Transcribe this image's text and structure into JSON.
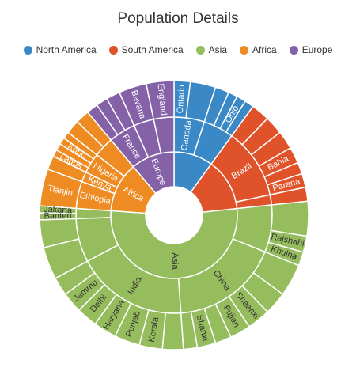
{
  "chart_data": {
    "type": "sunburst",
    "title": "Population Details",
    "legend_position": "top",
    "legend": [
      {
        "name": "North America",
        "color": "#3A88C5"
      },
      {
        "name": "South America",
        "color": "#E0532A"
      },
      {
        "name": "Asia",
        "color": "#95BC5D"
      },
      {
        "name": "Africa",
        "color": "#EE8B22"
      },
      {
        "name": "Europe",
        "color": "#8562A7"
      }
    ],
    "continents": [
      {
        "name": "North America",
        "label": "",
        "value": 36,
        "color": "#3A88C5",
        "countries": [
          {
            "name": "Canada",
            "label": "Canada",
            "value": 18,
            "regions": [
              {
                "label": "Ontario",
                "value": 7
              },
              {
                "label": "",
                "value": 11
              }
            ]
          },
          {
            "name": "",
            "label": "",
            "value": 18,
            "regions": [
              {
                "label": "",
                "value": 6
              },
              {
                "label": "",
                "value": 4
              },
              {
                "label": "Ohio",
                "value": 4
              },
              {
                "label": "",
                "value": 4
              }
            ]
          }
        ]
      },
      {
        "name": "South America",
        "label": "",
        "value": 48,
        "color": "#E0532A",
        "countries": [
          {
            "name": "Brazil",
            "label": "Brazil",
            "value": 42,
            "regions": [
              {
                "label": "",
                "value": 8
              },
              {
                "label": "",
                "value": 8
              },
              {
                "label": "",
                "value": 8
              },
              {
                "label": "Bahia",
                "value": 7
              },
              {
                "label": "",
                "value": 5
              },
              {
                "label": "Parana",
                "value": 6
              }
            ]
          },
          {
            "name": "",
            "label": "",
            "value": 6,
            "regions": [
              {
                "label": "",
                "value": 6
              }
            ]
          }
        ]
      },
      {
        "name": "Asia",
        "label": "Asia",
        "value": 190,
        "color": "#95BC5D",
        "countries": [
          {
            "name": "",
            "label": "",
            "value": 28,
            "regions": [
              {
                "label": "",
                "value": 15
              },
              {
                "label": "Rajshahi",
                "value": 7
              },
              {
                "label": "Khulna",
                "value": 6
              }
            ]
          },
          {
            "name": "China",
            "label": "China",
            "value": 64,
            "regions": [
              {
                "label": "",
                "value": 14
              },
              {
                "label": "",
                "value": 10
              },
              {
                "label": "Shaanxi",
                "value": 10
              },
              {
                "label": "Fujian",
                "value": 9
              },
              {
                "label": "",
                "value": 7
              },
              {
                "label": "Shanxi",
                "value": 8
              },
              {
                "label": "",
                "value": 6
              }
            ]
          },
          {
            "name": "India",
            "label": "India",
            "value": 66,
            "regions": [
              {
                "label": "",
                "value": 9
              },
              {
                "label": "Kerala",
                "value": 10
              },
              {
                "label": "Punjab",
                "value": 11
              },
              {
                "label": "Haryana",
                "value": 10
              },
              {
                "label": "Delhi",
                "value": 9
              },
              {
                "label": "Jammu",
                "value": 9
              },
              {
                "label": "",
                "value": 8
              }
            ]
          },
          {
            "name": "",
            "label": "",
            "value": 26,
            "regions": [
              {
                "label": "",
                "value": 14
              },
              {
                "label": "",
                "value": 12
              }
            ]
          },
          {
            "name": "",
            "label": "",
            "value": 6,
            "regions": [
              {
                "label": "Banten",
                "value": 3
              },
              {
                "label": "Jakarta",
                "value": 3
              }
            ]
          }
        ]
      },
      {
        "name": "Africa",
        "label": "Africa",
        "value": 46,
        "color": "#EE8B22",
        "countries": [
          {
            "name": "Ethiopia",
            "label": "Ethiopia",
            "value": 16,
            "regions": [
              {
                "label": "Tianjin",
                "value": 16
              }
            ]
          },
          {
            "name": "Kenya",
            "label": "Kenya",
            "value": 6,
            "regions": [
              {
                "label": "",
                "value": 6
              }
            ]
          },
          {
            "name": "Nigeria",
            "label": "Nigeria",
            "value": 12,
            "regions": [
              {
                "label": "Lagos",
                "value": 3
              },
              {
                "label": "",
                "value": 3
              },
              {
                "label": "Kano",
                "value": 3
              },
              {
                "label": "",
                "value": 3
              }
            ]
          },
          {
            "name": "",
            "label": "",
            "value": 12,
            "regions": [
              {
                "label": "",
                "value": 6
              },
              {
                "label": "",
                "value": 6
              }
            ]
          }
        ]
      },
      {
        "name": "Europe",
        "label": "Europe",
        "value": 40,
        "color": "#8562A7",
        "countries": [
          {
            "name": "France",
            "label": "France",
            "value": 16,
            "regions": [
              {
                "label": "",
                "value": 5
              },
              {
                "label": "",
                "value": 5
              },
              {
                "label": "",
                "value": 6
              }
            ]
          },
          {
            "name": "",
            "label": "",
            "value": 12,
            "regions": [
              {
                "label": "Bavaria",
                "value": 12
              }
            ]
          },
          {
            "name": "",
            "label": "",
            "value": 12,
            "regions": [
              {
                "label": "England",
                "value": 12
              }
            ]
          }
        ]
      }
    ]
  }
}
